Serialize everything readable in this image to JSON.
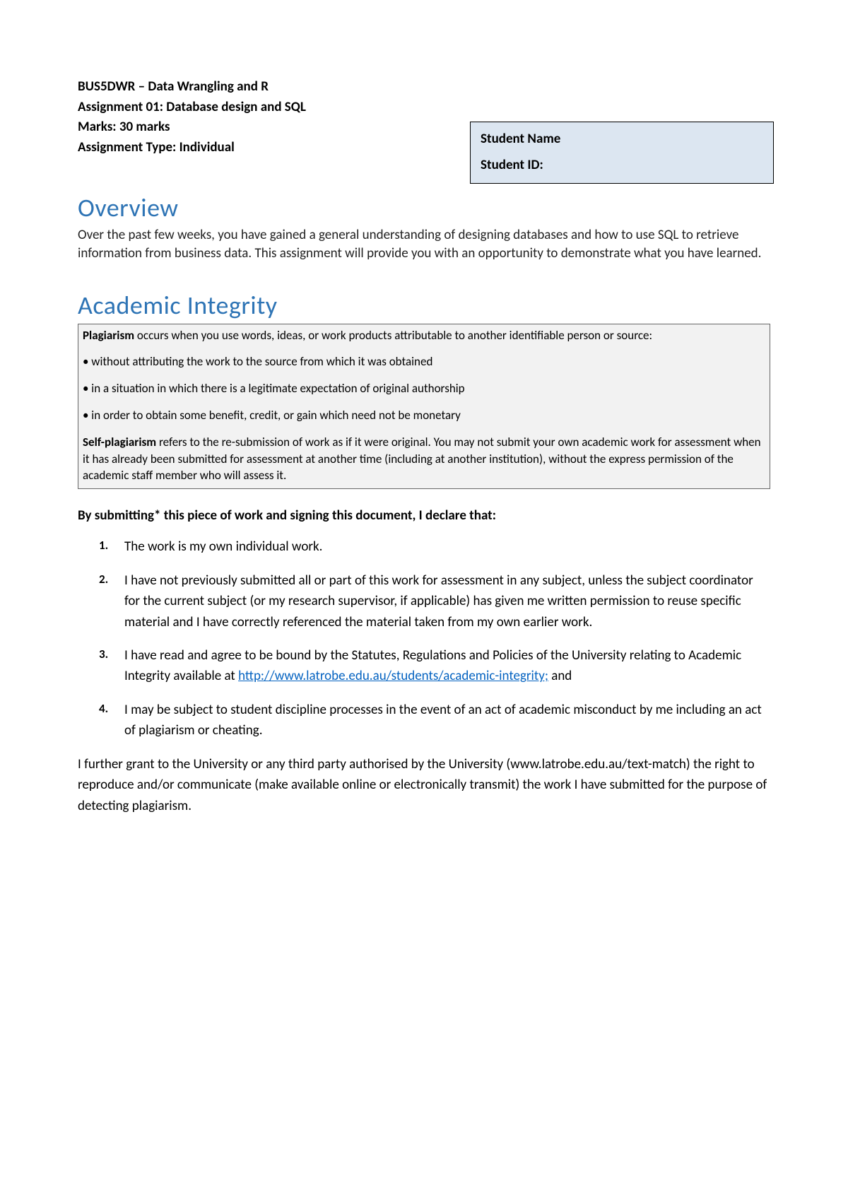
{
  "header": {
    "line1": "BUS5DWR – Data Wrangling and R",
    "line2": "Assignment 01: Database design and SQL",
    "line3": "Marks: 30 marks",
    "line4": "Assignment Type: Individual"
  },
  "student_box": {
    "name_label": "Student Name",
    "id_label": "Student ID:"
  },
  "overview": {
    "heading": "Overview",
    "text": "Over the past few weeks, you have gained a general understanding of designing databases and how to use SQL to retrieve information from business data. This assignment will provide you with an opportunity to demonstrate what you have learned."
  },
  "academic_integrity": {
    "heading": "Academic Integrity",
    "plagiarism_bold": "Plagiarism",
    "plagiarism_intro": " occurs when you use words, ideas, or work products attributable to another identifiable person or source:",
    "bullet1": "• without attributing the work to the source from which it was obtained",
    "bullet2": "• in a situation in which there is a legitimate expectation of original authorship",
    "bullet3": "• in order to obtain some benefit, credit, or gain which need not be monetary",
    "self_plagiarism_bold": "Self-plagiarism",
    "self_plagiarism_text": " refers to the re-submission of work as if it were original. You may not submit your own academic work for assessment when it has already been submitted for assessment at another time (including at another institution), without the express permission of the academic staff member who will assess it."
  },
  "declaration": {
    "heading": "By submitting* this piece of work and signing this document, I declare that:",
    "item1": "The work is my own individual work.",
    "item2": "I have not previously submitted all or part of this work for assessment in any subject, unless the subject coordinator for the current subject (or my research supervisor, if applicable) has given me written permission to reuse specific material and I have correctly referenced the material taken from my own earlier work.",
    "item3_pre": "I have read and agree to be bound by the Statutes, Regulations and Policies of the University relating to Academic Integrity available at ",
    "item3_link": "http://www.latrobe.edu.au/students/academic-integrity;",
    "item3_post": " and",
    "item4": "I may be subject to student discipline processes in the event of an act of academic misconduct by me including an act of plagiarism or cheating.",
    "further_grant": "I further grant to the University or any third party authorised by the University (www.latrobe.edu.au/text-match) the right to reproduce and/or communicate (make available online or electronically transmit) the work I have submitted for the purpose of detecting plagiarism."
  },
  "colors": {
    "heading_color": "#2e74b5",
    "box_bg": "#dce6f1",
    "integrity_bg": "#f2f2f2",
    "link_color": "#0563c1",
    "text_color": "#000000"
  }
}
